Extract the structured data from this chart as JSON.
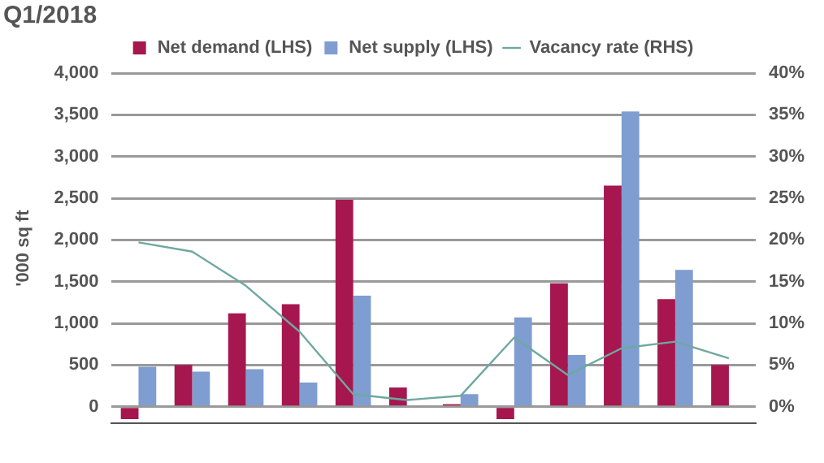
{
  "chart_data": {
    "type": "bar",
    "title": "Q1/2018",
    "ylabel": "'000 sq ft",
    "categories": [
      null,
      null,
      null,
      null,
      null,
      null,
      null,
      null,
      null,
      null,
      null,
      null
    ],
    "series": [
      {
        "name": "Net demand (LHS)",
        "color": "#a6174f",
        "values": [
          -150,
          500,
          1120,
          1230,
          2480,
          230,
          30,
          -150,
          1480,
          2650,
          1290,
          500
        ]
      },
      {
        "name": "Net supply (LHS)",
        "color": "#7f9dd0",
        "values": [
          480,
          420,
          450,
          290,
          1330,
          null,
          150,
          1070,
          620,
          3540,
          1640,
          null
        ]
      },
      {
        "name": "Vacancy rate (RHS)",
        "type": "line",
        "axis": "y2",
        "color": "#6fa8a0",
        "values": [
          19.7,
          18.6,
          14.5,
          9,
          1.5,
          0.8,
          1.3,
          8.3,
          3.8,
          7,
          7.8,
          5.8
        ]
      }
    ],
    "ylim": [
      -200,
      4000
    ],
    "yticks": [
      {
        "value": 0,
        "label": "0"
      },
      {
        "value": 500,
        "label": "500"
      },
      {
        "value": 1000,
        "label": "1,000"
      },
      {
        "value": 1500,
        "label": "1,500"
      },
      {
        "value": 2000,
        "label": "2,000"
      },
      {
        "value": 2500,
        "label": "2,500"
      },
      {
        "value": 3000,
        "label": "3,000"
      },
      {
        "value": 3500,
        "label": "3,500"
      },
      {
        "value": 4000,
        "label": "4,000"
      }
    ],
    "y2lim": [
      -2,
      40
    ],
    "y2ticks": [
      {
        "value": 0,
        "label": "0%"
      },
      {
        "value": 5,
        "label": "5%"
      },
      {
        "value": 10,
        "label": "10%"
      },
      {
        "value": 15,
        "label": "15%"
      },
      {
        "value": 20,
        "label": "20%"
      },
      {
        "value": 25,
        "label": "25%"
      },
      {
        "value": 30,
        "label": "30%"
      },
      {
        "value": 35,
        "label": "35%"
      },
      {
        "value": 40,
        "label": "40%"
      }
    ],
    "grid": "y",
    "legend": "top",
    "marker": "none"
  }
}
